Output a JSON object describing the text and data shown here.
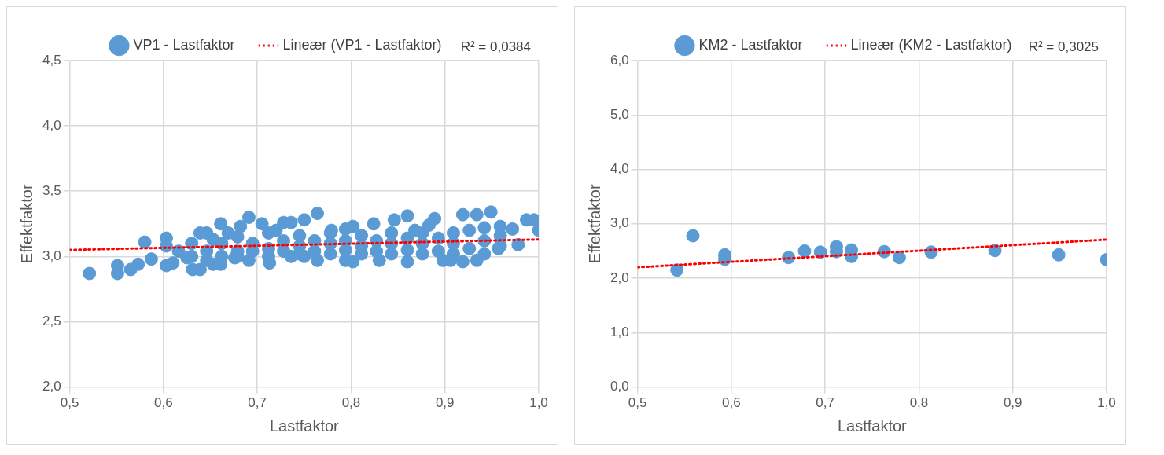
{
  "chart_data": [
    {
      "type": "scatter",
      "xlabel": "Lastfaktor",
      "ylabel": "Effektfaktor",
      "legend": "top",
      "grid": true,
      "marker": "circle",
      "annotations": [
        "R² = 0,0384"
      ],
      "xlim": [
        0.5,
        1.0
      ],
      "xticks": [
        {
          "value": 0.5,
          "label": "0,5"
        },
        {
          "value": 0.6,
          "label": "0,6"
        },
        {
          "value": 0.7,
          "label": "0,7"
        },
        {
          "value": 0.8,
          "label": "0,8"
        },
        {
          "value": 0.9,
          "label": "0,9"
        },
        {
          "value": 1.0,
          "label": "1,0"
        }
      ],
      "ylim": [
        2.0,
        4.5
      ],
      "yticks": [
        {
          "value": 2.0,
          "label": "2,0"
        },
        {
          "value": 2.5,
          "label": "2,5"
        },
        {
          "value": 3.0,
          "label": "3,0"
        },
        {
          "value": 3.5,
          "label": "3,5"
        },
        {
          "value": 4.0,
          "label": "4,0"
        },
        {
          "value": 4.5,
          "label": "4,5"
        }
      ],
      "series": [
        {
          "name": "VP1 - Lastfaktor",
          "color": "#5b9bd5",
          "x": [
            0.521,
            0.551,
            0.551,
            0.565,
            0.573,
            0.58,
            0.587,
            0.603,
            0.603,
            0.603,
            0.61,
            0.616,
            0.625,
            0.631,
            0.639,
            0.639,
            0.653,
            0.653,
            0.661,
            0.661,
            0.669,
            0.676,
            0.682,
            0.691,
            0.691,
            0.705,
            0.713,
            0.72,
            0.728,
            0.736,
            0.736,
            0.75,
            0.75,
            0.764,
            0.764,
            0.779,
            0.794,
            0.794,
            0.802,
            0.802,
            0.824,
            0.83,
            0.846,
            0.86,
            0.86,
            0.868,
            0.883,
            0.889,
            0.898,
            0.906,
            0.919,
            0.919,
            0.934,
            0.934,
            0.949,
            0.957,
            0.959,
            0.972,
            0.978,
            0.987,
            0.995,
            1.0,
            0.63,
            0.63,
            0.646,
            0.646,
            0.646,
            0.662,
            0.662,
            0.679,
            0.679,
            0.679,
            0.695,
            0.695,
            0.712,
            0.712,
            0.712,
            0.728,
            0.728,
            0.745,
            0.745,
            0.745,
            0.761,
            0.761,
            0.778,
            0.778,
            0.778,
            0.794,
            0.794,
            0.811,
            0.811,
            0.811,
            0.827,
            0.827,
            0.843,
            0.843,
            0.843,
            0.86,
            0.86,
            0.876,
            0.876,
            0.876,
            0.893,
            0.893,
            0.909,
            0.909,
            0.909,
            0.926,
            0.926,
            0.942,
            0.942,
            0.942,
            0.959,
            0.959
          ],
          "values": [
            2.87,
            2.93,
            2.87,
            2.9,
            2.94,
            3.11,
            2.98,
            3.14,
            3.08,
            2.93,
            2.95,
            3.04,
            2.99,
            2.9,
            3.18,
            2.9,
            2.94,
            3.13,
            3.25,
            2.94,
            3.18,
            2.99,
            3.23,
            3.3,
            2.97,
            3.25,
            2.95,
            3.2,
            3.26,
            3.26,
            3.0,
            3.28,
            3.0,
            3.33,
            2.97,
            3.2,
            3.21,
            2.97,
            3.23,
            2.96,
            3.25,
            2.97,
            3.28,
            3.31,
            2.96,
            3.2,
            3.24,
            3.29,
            2.97,
            2.97,
            3.32,
            2.96,
            3.32,
            2.97,
            3.34,
            3.06,
            3.23,
            3.21,
            3.09,
            3.28,
            3.28,
            3.2,
            3.1,
            3.0,
            3.18,
            3.04,
            2.97,
            3.1,
            3.0,
            3.15,
            3.04,
            3.0,
            3.1,
            3.04,
            3.18,
            3.06,
            3.0,
            3.12,
            3.04,
            3.16,
            3.08,
            3.02,
            3.12,
            3.04,
            3.18,
            3.1,
            3.02,
            3.12,
            3.05,
            3.16,
            3.08,
            3.02,
            3.12,
            3.04,
            3.18,
            3.1,
            3.02,
            3.14,
            3.05,
            3.18,
            3.1,
            3.02,
            3.14,
            3.04,
            3.18,
            3.1,
            3.02,
            3.2,
            3.06,
            3.22,
            3.12,
            3.02,
            3.16,
            3.08
          ]
        },
        {
          "name": "Lineær (VP1 - Lastfaktor)",
          "type": "line",
          "color": "#ff0000",
          "line_style": "dotted",
          "marker": "none",
          "x": [
            0.5,
            1.0
          ],
          "values": [
            3.05,
            3.13
          ]
        }
      ]
    },
    {
      "type": "scatter",
      "xlabel": "Lastfaktor",
      "ylabel": "Effektfaktor",
      "legend": "top",
      "grid": true,
      "marker": "circle",
      "annotations": [
        "R² = 0,3025"
      ],
      "xlim": [
        0.5,
        1.0
      ],
      "xticks": [
        {
          "value": 0.5,
          "label": "0,5"
        },
        {
          "value": 0.6,
          "label": "0,6"
        },
        {
          "value": 0.7,
          "label": "0,7"
        },
        {
          "value": 0.8,
          "label": "0,8"
        },
        {
          "value": 0.9,
          "label": "0,9"
        },
        {
          "value": 1.0,
          "label": "1,0"
        }
      ],
      "ylim": [
        0,
        6
      ],
      "yticks": [
        {
          "value": 0,
          "label": "0,0"
        },
        {
          "value": 1,
          "label": "1,0"
        },
        {
          "value": 2,
          "label": "2,0"
        },
        {
          "value": 3,
          "label": "3,0"
        },
        {
          "value": 4,
          "label": "4,0"
        },
        {
          "value": 5,
          "label": "5,0"
        },
        {
          "value": 6,
          "label": "6,0"
        }
      ],
      "series": [
        {
          "name": "KM2 - Lastfaktor",
          "color": "#5b9bd5",
          "x": [
            0.542,
            0.559,
            0.593,
            0.593,
            0.661,
            0.678,
            0.695,
            0.712,
            0.712,
            0.728,
            0.728,
            0.763,
            0.779,
            0.813,
            0.881,
            0.949,
            1.0
          ],
          "values": [
            2.15,
            2.78,
            2.43,
            2.35,
            2.38,
            2.5,
            2.48,
            2.58,
            2.49,
            2.52,
            2.4,
            2.49,
            2.38,
            2.48,
            2.51,
            2.43,
            2.34
          ]
        },
        {
          "name": "Lineær (KM2 - Lastfaktor)",
          "type": "line",
          "color": "#ff0000",
          "line_style": "dotted",
          "marker": "none",
          "x": [
            0.5,
            1.0
          ],
          "values": [
            2.2,
            2.71
          ]
        }
      ]
    }
  ]
}
